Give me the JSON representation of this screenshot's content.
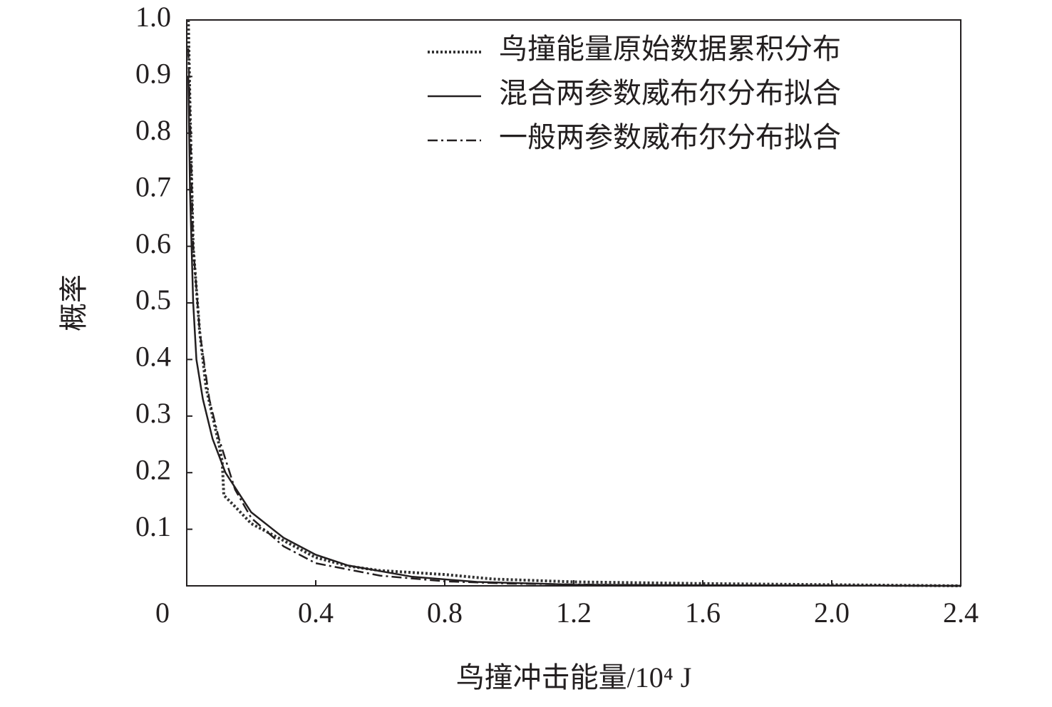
{
  "chart_data": {
    "type": "line",
    "x_label": "鸟撞冲击能量/10⁴ J",
    "y_label": "概率",
    "xlim": [
      0,
      2.4
    ],
    "ylim": [
      0,
      1
    ],
    "xticks": [
      0,
      0.4,
      0.8,
      1.2,
      1.6,
      {
        "value": 2,
        "label": "2.0"
      },
      2.4
    ],
    "yticks": [
      0.1,
      0.2,
      0.3,
      0.4,
      0.5,
      0.6,
      0.7,
      0.8,
      0.9,
      {
        "value": 1,
        "label": "1.0"
      }
    ],
    "legend": "upper right",
    "series": [
      {
        "name": "鸟撞能量原始数据累积分布",
        "color": "#333333",
        "dash": "dotted",
        "x": [
          0.005,
          0.01,
          0.02,
          0.04,
          0.06,
          0.08,
          0.1,
          0.11,
          0.115,
          0.15,
          0.2,
          0.3,
          0.4,
          0.5,
          0.6,
          0.8,
          0.95,
          1.2,
          1.6,
          2.0,
          2.4
        ],
        "values": [
          1.0,
          0.85,
          0.6,
          0.45,
          0.35,
          0.3,
          0.25,
          0.22,
          0.16,
          0.14,
          0.11,
          0.08,
          0.05,
          0.035,
          0.027,
          0.02,
          0.012,
          0.007,
          0.004,
          0.002,
          0
        ]
      },
      {
        "name": "混合两参数威布尔分布拟合",
        "color": "#231f20",
        "dash": "solid",
        "x": [
          0.005,
          0.01,
          0.02,
          0.03,
          0.05,
          0.08,
          0.12,
          0.2,
          0.3,
          0.4,
          0.5,
          0.7,
          0.9,
          1.2,
          1.6,
          2.4
        ],
        "values": [
          0.9,
          0.7,
          0.5,
          0.4,
          0.33,
          0.26,
          0.2,
          0.13,
          0.085,
          0.055,
          0.036,
          0.016,
          0.007,
          0.002,
          0.001,
          0
        ]
      },
      {
        "name": "一般两参数威布尔分布拟合",
        "color": "#231f20",
        "dash": "dashdot",
        "x": [
          0.005,
          0.02,
          0.04,
          0.07,
          0.1,
          0.15,
          0.2,
          0.3,
          0.4,
          0.6,
          0.8,
          1.0,
          1.4,
          2.4
        ],
        "values": [
          0.95,
          0.6,
          0.45,
          0.33,
          0.26,
          0.17,
          0.12,
          0.07,
          0.04,
          0.018,
          0.008,
          0.004,
          0.001,
          0
        ]
      }
    ]
  }
}
